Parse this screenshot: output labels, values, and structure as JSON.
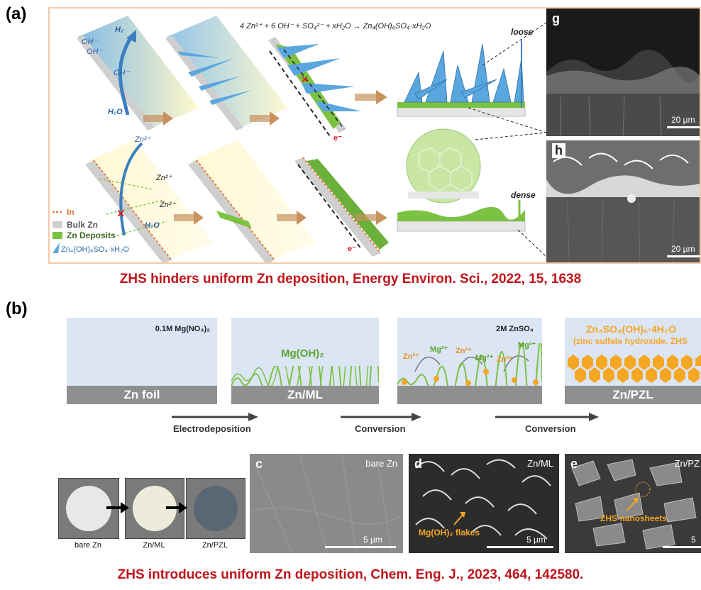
{
  "panel_a": {
    "label": "(a)",
    "equation": "4 Zn²⁺ + 6 OH⁻ + SO₄²⁻ + xH₂O → Zn₄(OH)₆SO₄·xH₂O",
    "chem": {
      "h2": "H₂",
      "oh1": "OH⁻",
      "oh2": "OH⁻",
      "oh3": "OH⁻",
      "h2o_top": "H₂O",
      "zn1": "Zn²⁺",
      "zn2": "Zn²⁺",
      "zn3": "Zn²⁺",
      "h2o_bot": "H₂O",
      "e_top": "e⁻",
      "e_bot": "e⁻"
    },
    "loose": "loose",
    "dense": "dense",
    "legend": {
      "in": "In",
      "bulk": "Bulk Zn",
      "deposits": "Zn Deposits",
      "zhs": "Zn₄(OH)₆SO₄·xH₂O"
    },
    "sem_g": {
      "letter": "g",
      "scale": "20 µm"
    },
    "sem_h": {
      "letter": "h",
      "scale": "20 µm"
    },
    "caption": "ZHS hinders uniform Zn deposition, Energy Environ. Sci., 2022, 15, 1638"
  },
  "panel_b": {
    "label": "(b)",
    "boxes": [
      {
        "top_label": "0.1M Mg(NO₃)₂",
        "foil": "Zn foil"
      },
      {
        "top_label": "",
        "mid_label": "Mg(OH)₂",
        "foil": "Zn/ML"
      },
      {
        "top_label": "2M ZnSO₄",
        "foil": ""
      },
      {
        "top_label": "Zn₄SO₄(OH)₆·4H₂O",
        "sub_label": "(zinc sulfate hydroxide, ZHS",
        "foil": "Zn/PZL"
      }
    ],
    "ions": {
      "zn_a": "Zn²⁺",
      "mg_a": "Mg²⁺",
      "zn_b": "Zn²⁺",
      "mg_b": "Mg²⁺",
      "zn_c": "Zn²⁺",
      "mg_c": "Mg²⁺"
    },
    "steps": [
      "Electrodeposition",
      "Conversion",
      "Conversion"
    ],
    "photos": [
      "bare Zn",
      "Zn/ML",
      "Zn/PZL"
    ],
    "sem_c": {
      "letter": "c",
      "tag": "bare Zn",
      "scale": "5 µm"
    },
    "sem_d": {
      "letter": "d",
      "tag": "Zn/ML",
      "anno": "Mg(OH)₂ flakes",
      "scale": "5 µm"
    },
    "sem_e": {
      "letter": "e",
      "tag": "Zn/PZ",
      "anno": "ZHS nanosheets",
      "scale": "5"
    },
    "caption": "ZHS introduces uniform Zn deposition, Chem. Eng. J., 2023, 464, 142580."
  },
  "colors": {
    "caption_red": "#c0141c",
    "zhs_blue": "#5aa7df",
    "deposit_green": "#7cc242",
    "orange": "#f5a623",
    "frame": "#f3c9a9"
  }
}
